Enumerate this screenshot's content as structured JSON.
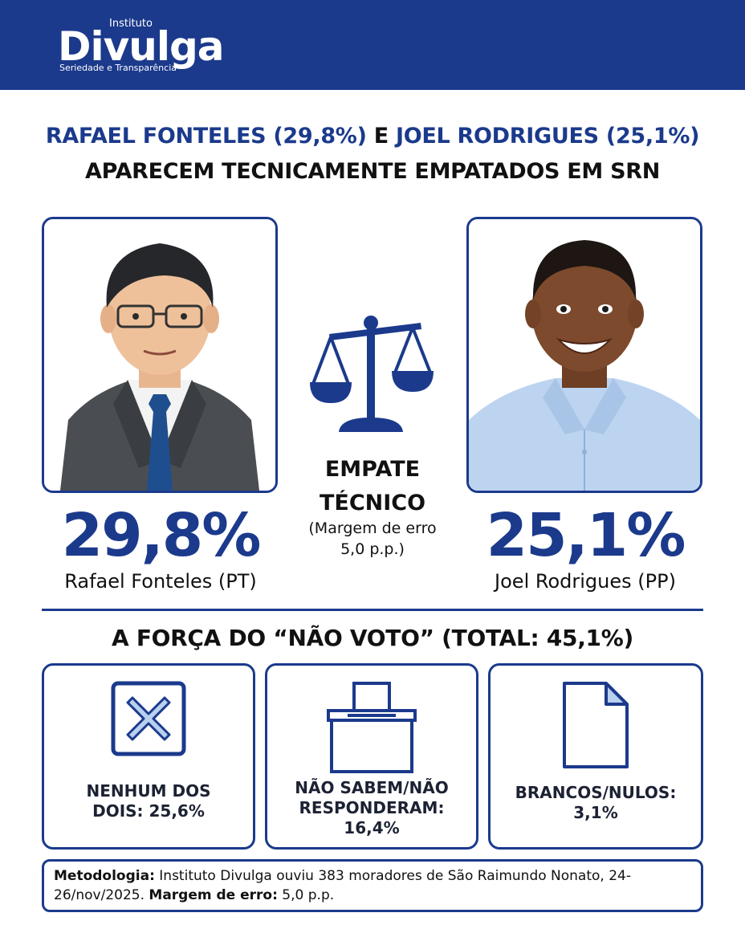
{
  "header": {
    "logo_small": "Instituto",
    "logo_main": "Divulga",
    "logo_tagline": "Seriedade e Transparência",
    "background_color": "#1b3a8c"
  },
  "headline": {
    "candidate1_part": "RAFAEL FONTELES (29,8%)",
    "connector": "E",
    "candidate2_part": "JOEL RODRIGUES (25,1%)",
    "line2": "APARECEM TECNICAMENTE EMPATADOS EM SRN"
  },
  "candidates": [
    {
      "percent": "29,8%",
      "name": "Rafael Fonteles (PT)"
    },
    {
      "percent": "25,1%",
      "name": "Joel Rodrigues (PP)"
    }
  ],
  "tie": {
    "line1": "EMPATE",
    "line2": "TÉCNICO",
    "margin_line1": "(Margem de erro",
    "margin_line2": "5,0 p.p.)",
    "icon": "balance-scale-icon"
  },
  "non_vote": {
    "title": "A FORÇA DO “NÃO VOTO” (TOTAL: 45,1%)",
    "cards": [
      {
        "icon": "x-box-icon",
        "line1": "NENHUM DOS",
        "line2": "DOIS: 25,6%",
        "line3": ""
      },
      {
        "icon": "ballot-box-icon",
        "line1": "NÃO SABEM/NÃO",
        "line2": "RESPONDERAM:",
        "line3": "16,4%"
      },
      {
        "icon": "blank-paper-icon",
        "line1": "BRANCOS/NULOS:",
        "line2": "3,1%",
        "line3": ""
      }
    ]
  },
  "methodology": {
    "label": "Metodologia:",
    "text": " Instituto Divulga ouviu 383 moradores de São Raimundo Nonato, 24-26/nov/2025. ",
    "margin_label": "Margem de erro:",
    "margin_value": " 5,0 p.p."
  },
  "colors": {
    "accent": "#1b3a8c",
    "text": "#111111"
  }
}
